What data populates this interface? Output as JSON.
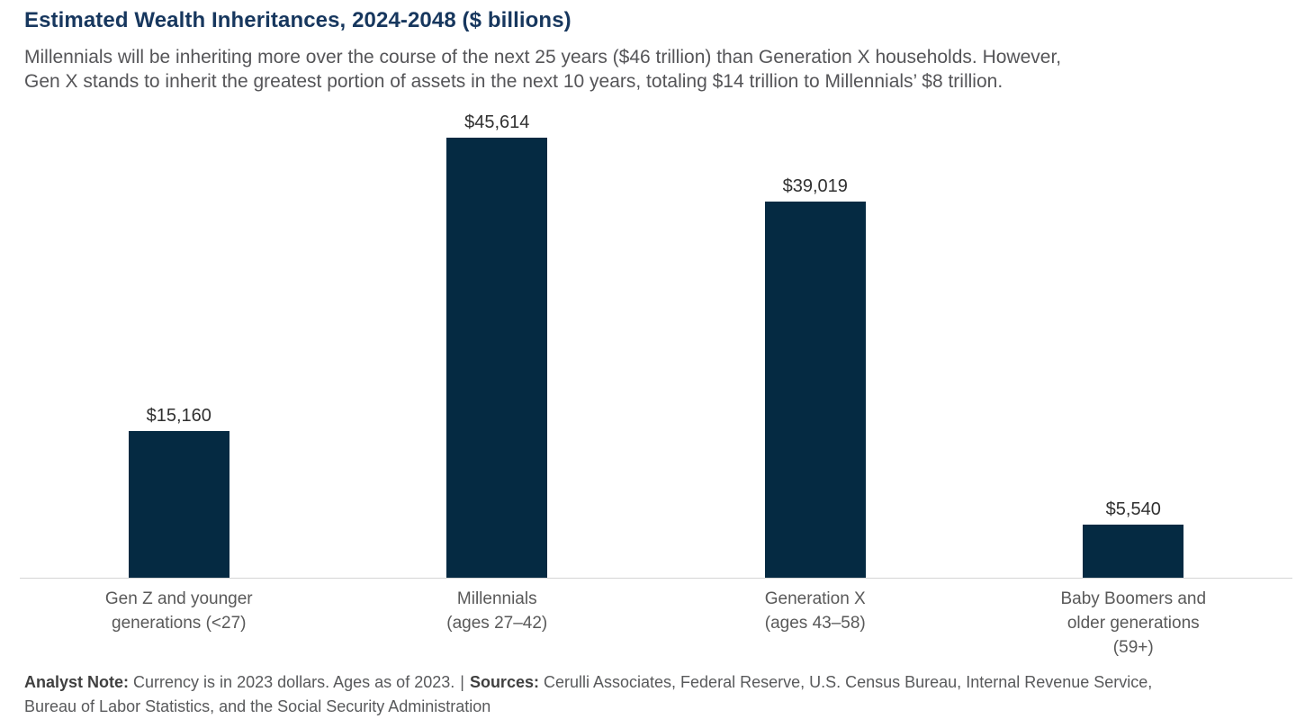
{
  "page": {
    "title": "Estimated Wealth Inheritances, 2024-2048 ($ billions)",
    "subtitle_lines": [
      "Millennials will be inheriting more over the course of the next 25 years ($46 trillion) than Generation X households. However,",
      "Gen X stands to inherit the greatest portion of assets in the next 10 years, totaling $14 trillion to Millennials’ $8 trillion."
    ]
  },
  "chart_data": {
    "type": "bar",
    "title": "Estimated Wealth Inheritances, 2024-2048 ($ billions)",
    "unit": "$ billions",
    "categories": [
      "Gen Z and younger generations (<27)",
      "Millennials (ages 27–42)",
      "Generation X (ages 43–58)",
      "Baby Boomers and older generations (59+)"
    ],
    "category_label_lines": [
      [
        "Gen Z and younger",
        "generations (<27)"
      ],
      [
        "Millennials",
        "(ages 27–42)"
      ],
      [
        "Generation X",
        "(ages 43–58)"
      ],
      [
        "Baby Boomers and",
        "older generations",
        "(59+)"
      ]
    ],
    "values": [
      15160,
      45614,
      39019,
      5540
    ],
    "value_labels": [
      "$15,160",
      "$45,614",
      "$39,019",
      "$5,540"
    ],
    "ylim": [
      0,
      50000
    ],
    "xlabel": "",
    "ylabel": "",
    "grid": false,
    "legend": false,
    "bar_color": "#052a42"
  },
  "colors": {
    "title": "#17375e",
    "bar": "#052a42",
    "subtitle_text": "#555558",
    "category_text": "#595959",
    "value_label_text": "#303030",
    "footer_text": "#58595b",
    "axis_line": "#d5d5d5"
  },
  "footer": {
    "note_label": "Analyst Note:",
    "note_text": "Currency is in 2023 dollars. Ages as of 2023.",
    "separator": "|",
    "sources_label": "Sources:",
    "sources_line1": "Cerulli Associates, Federal Reserve, U.S. Census Bureau, Internal Revenue Service,",
    "sources_line2": "Bureau of Labor Statistics, and the Social Security Administration"
  }
}
